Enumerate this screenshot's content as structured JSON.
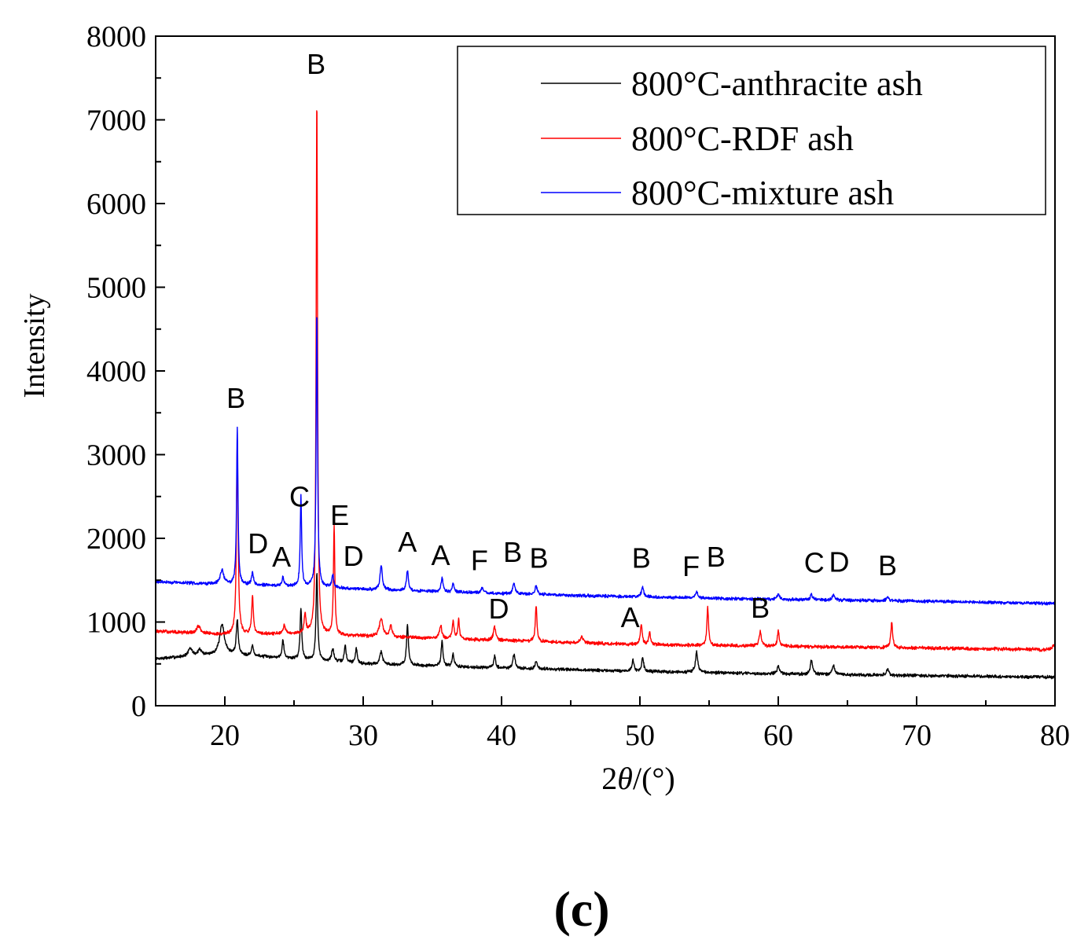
{
  "chart_data": {
    "type": "line",
    "title": "",
    "xlabel_prefix": "2",
    "xlabel_theta": "θ",
    "xlabel_suffix": "/(°)",
    "ylabel": "Intensity",
    "xlim": [
      15,
      80
    ],
    "ylim": [
      0,
      8000
    ],
    "xticks": [
      20,
      30,
      40,
      50,
      60,
      70,
      80
    ],
    "yticks": [
      0,
      1000,
      2000,
      3000,
      4000,
      5000,
      6000,
      7000,
      8000
    ],
    "grid": false,
    "legend_position": "top-right",
    "series": [
      {
        "name": "800°C-anthracite ash",
        "color": "#000000",
        "base": [
          [
            15,
            560
          ],
          [
            20,
            620
          ],
          [
            25,
            560
          ],
          [
            30,
            500
          ],
          [
            40,
            450
          ],
          [
            50,
            410
          ],
          [
            60,
            380
          ],
          [
            70,
            360
          ],
          [
            80,
            340
          ]
        ],
        "peaks": [
          [
            17.5,
            90,
            0.18
          ],
          [
            18.2,
            70,
            0.15
          ],
          [
            19.8,
            350,
            0.2
          ],
          [
            20.9,
            420,
            0.08
          ],
          [
            22.0,
            120,
            0.08
          ],
          [
            24.2,
            220,
            0.08
          ],
          [
            25.5,
            620,
            0.07
          ],
          [
            26.65,
            1050,
            0.07
          ],
          [
            27.8,
            150,
            0.1
          ],
          [
            28.7,
            200,
            0.08
          ],
          [
            29.5,
            180,
            0.08
          ],
          [
            31.3,
            150,
            0.12
          ],
          [
            33.2,
            480,
            0.08
          ],
          [
            35.7,
            300,
            0.08
          ],
          [
            36.5,
            150,
            0.08
          ],
          [
            39.5,
            140,
            0.08
          ],
          [
            40.9,
            160,
            0.1
          ],
          [
            42.5,
            80,
            0.1
          ],
          [
            49.5,
            140,
            0.08
          ],
          [
            50.2,
            170,
            0.08
          ],
          [
            54.1,
            250,
            0.1
          ],
          [
            60.0,
            90,
            0.1
          ],
          [
            62.4,
            170,
            0.1
          ],
          [
            64.0,
            110,
            0.1
          ],
          [
            67.9,
            80,
            0.1
          ]
        ],
        "noise": 28,
        "seed": 7
      },
      {
        "name": "800°C-RDF ash",
        "color": "#ff0000",
        "base": [
          [
            15,
            890
          ],
          [
            20,
            850
          ],
          [
            25,
            860
          ],
          [
            30,
            830
          ],
          [
            40,
            780
          ],
          [
            50,
            730
          ],
          [
            60,
            710
          ],
          [
            70,
            690
          ],
          [
            80,
            670
          ]
        ],
        "peaks": [
          [
            18.1,
            90,
            0.15
          ],
          [
            20.9,
            2300,
            0.07
          ],
          [
            22.0,
            450,
            0.07
          ],
          [
            24.3,
            100,
            0.08
          ],
          [
            25.8,
            220,
            0.08
          ],
          [
            26.65,
            6420,
            0.06
          ],
          [
            27.9,
            1300,
            0.06
          ],
          [
            31.3,
            220,
            0.15
          ],
          [
            32.0,
            140,
            0.1
          ],
          [
            35.6,
            160,
            0.1
          ],
          [
            36.5,
            200,
            0.08
          ],
          [
            36.9,
            230,
            0.07
          ],
          [
            39.5,
            160,
            0.1
          ],
          [
            42.5,
            430,
            0.07
          ],
          [
            45.8,
            80,
            0.1
          ],
          [
            50.1,
            240,
            0.08
          ],
          [
            50.7,
            150,
            0.08
          ],
          [
            54.9,
            460,
            0.07
          ],
          [
            58.7,
            170,
            0.1
          ],
          [
            60.0,
            180,
            0.08
          ],
          [
            68.2,
            300,
            0.08
          ],
          [
            79.9,
            60,
            0.1
          ]
        ],
        "noise": 30,
        "seed": 13
      },
      {
        "name": "800°C-mixture ash",
        "color": "#0000ff",
        "base": [
          [
            15,
            1480
          ],
          [
            20,
            1450
          ],
          [
            25,
            1430
          ],
          [
            30,
            1390
          ],
          [
            40,
            1340
          ],
          [
            50,
            1300
          ],
          [
            60,
            1270
          ],
          [
            70,
            1250
          ],
          [
            80,
            1220
          ]
        ],
        "peaks": [
          [
            19.8,
            170,
            0.15
          ],
          [
            20.9,
            1890,
            0.06
          ],
          [
            22.0,
            150,
            0.08
          ],
          [
            24.2,
            100,
            0.08
          ],
          [
            25.5,
            1080,
            0.06
          ],
          [
            26.65,
            3290,
            0.06
          ],
          [
            27.8,
            150,
            0.08
          ],
          [
            31.3,
            290,
            0.1
          ],
          [
            33.2,
            250,
            0.08
          ],
          [
            35.7,
            170,
            0.08
          ],
          [
            36.5,
            100,
            0.08
          ],
          [
            38.6,
            60,
            0.1
          ],
          [
            40.9,
            120,
            0.1
          ],
          [
            42.5,
            100,
            0.1
          ],
          [
            50.2,
            120,
            0.1
          ],
          [
            54.1,
            70,
            0.1
          ],
          [
            60.0,
            60,
            0.1
          ],
          [
            62.4,
            60,
            0.1
          ],
          [
            64.0,
            60,
            0.1
          ],
          [
            67.9,
            50,
            0.1
          ]
        ],
        "noise": 28,
        "seed": 29
      }
    ],
    "annotations": [
      {
        "text": "B",
        "x": 26.6,
        "y": 7550
      },
      {
        "text": "B",
        "x": 20.8,
        "y": 3560
      },
      {
        "text": "C",
        "x": 25.4,
        "y": 2380
      },
      {
        "text": "E",
        "x": 28.3,
        "y": 2160
      },
      {
        "text": "D",
        "x": 22.4,
        "y": 1820
      },
      {
        "text": "A",
        "x": 24.1,
        "y": 1660
      },
      {
        "text": "D",
        "x": 29.3,
        "y": 1670
      },
      {
        "text": "A",
        "x": 33.2,
        "y": 1840
      },
      {
        "text": "A",
        "x": 35.6,
        "y": 1680
      },
      {
        "text": "F",
        "x": 38.4,
        "y": 1620
      },
      {
        "text": "B",
        "x": 40.8,
        "y": 1720
      },
      {
        "text": "B",
        "x": 42.7,
        "y": 1650
      },
      {
        "text": "B",
        "x": 50.1,
        "y": 1650
      },
      {
        "text": "F",
        "x": 53.7,
        "y": 1550
      },
      {
        "text": "B",
        "x": 55.5,
        "y": 1660
      },
      {
        "text": "C",
        "x": 62.6,
        "y": 1590
      },
      {
        "text": "D",
        "x": 64.4,
        "y": 1600
      },
      {
        "text": "B",
        "x": 67.9,
        "y": 1560
      },
      {
        "text": "D",
        "x": 39.8,
        "y": 1040
      },
      {
        "text": "A",
        "x": 49.3,
        "y": 940
      },
      {
        "text": "B",
        "x": 58.7,
        "y": 1050
      }
    ],
    "panel_label": "(c)"
  }
}
